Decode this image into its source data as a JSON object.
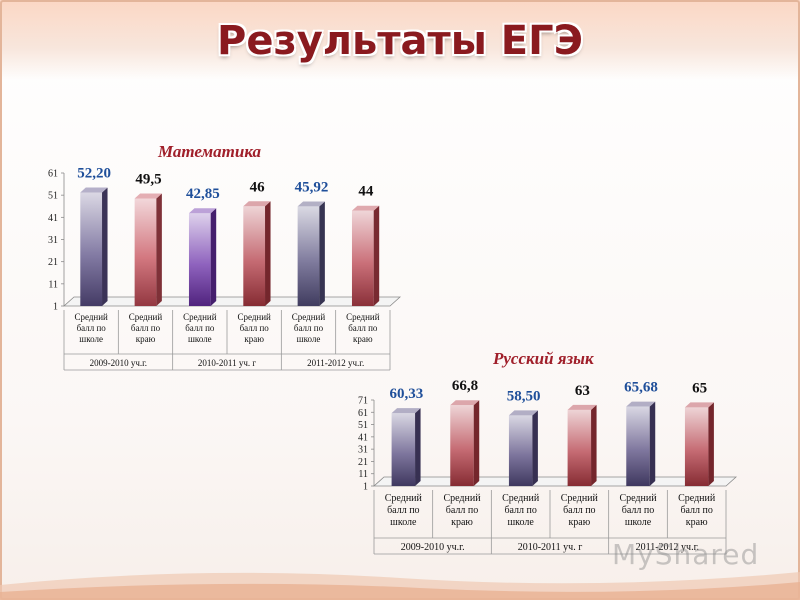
{
  "slide": {
    "title": "Результаты ЕГЭ"
  },
  "watermark": "MyShared",
  "chart_data": [
    {
      "type": "bar",
      "title": "Математика",
      "categories": [
        "Средний балл по школе",
        "Средний балл по краю",
        "Средний балл по школе",
        "Средний балл по краю",
        "Средний балл по школе",
        "Средний балл по краю"
      ],
      "groups": [
        "2009-2010 уч.г.",
        "2010-2011 уч. г",
        "2011-2012 уч.г."
      ],
      "values": [
        52.2,
        49.5,
        42.85,
        46,
        45.92,
        44
      ],
      "value_labels": [
        "52,20",
        "49,5",
        "42,85",
        "46",
        "45,92",
        "44"
      ],
      "yticks": [
        1,
        11,
        21,
        31,
        41,
        51,
        61
      ],
      "ylim": [
        1,
        61
      ],
      "colors": [
        "#5a4f86",
        "#c44b56",
        "#6a2fa8",
        "#b23a44",
        "#55507e",
        "#b8404c"
      ]
    },
    {
      "type": "bar",
      "title": "Русский язык",
      "categories": [
        "Средний балл по школе",
        "Средний балл по краю",
        "Средний балл по школе",
        "Средний балл по краю",
        "Средний балл по школе",
        "Средний балл по краю"
      ],
      "groups": [
        "2009-2010 уч.г.",
        "2010-2011 уч. г",
        "2011-2012 уч.г."
      ],
      "values": [
        60.33,
        66.8,
        58.5,
        63,
        65.68,
        65
      ],
      "value_labels": [
        "60,33",
        "66,8",
        "58,50",
        "63",
        "65,68",
        "65"
      ],
      "yticks": [
        1,
        11,
        21,
        31,
        41,
        51,
        61,
        71
      ],
      "ylim": [
        1,
        71
      ],
      "colors": [
        "#544a7e",
        "#b23a44",
        "#544a7e",
        "#b23a44",
        "#544a7e",
        "#b23a44"
      ]
    }
  ]
}
